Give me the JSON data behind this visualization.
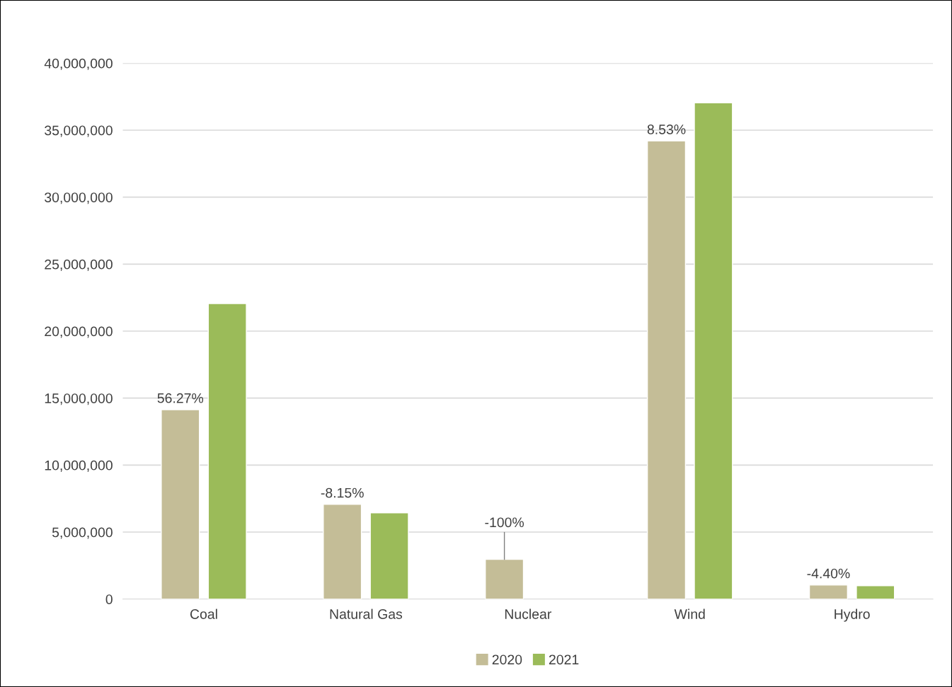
{
  "chart_data": {
    "type": "bar",
    "categories": [
      "Coal",
      "Natural Gas",
      "Nuclear",
      "Wind",
      "Hydro"
    ],
    "series": [
      {
        "name": "2020",
        "color": "#c4bd97",
        "values": [
          14140000,
          7070000,
          2960000,
          34200000,
          1050000
        ]
      },
      {
        "name": "2021",
        "color": "#9bbb59",
        "values": [
          22060000,
          6440000,
          null,
          37040000,
          1000000
        ]
      }
    ],
    "ylim": [
      0,
      40000000
    ],
    "yticks": [
      {
        "value": 0,
        "label": "0"
      },
      {
        "value": 5000000,
        "label": "5,000,000"
      },
      {
        "value": 10000000,
        "label": "10,000,000"
      },
      {
        "value": 15000000,
        "label": "15,000,000"
      },
      {
        "value": 20000000,
        "label": "20,000,000"
      },
      {
        "value": 25000000,
        "label": "25,000,000"
      },
      {
        "value": 30000000,
        "label": "30,000,000"
      },
      {
        "value": 35000000,
        "label": "35,000,000"
      },
      {
        "value": 40000000,
        "label": "40,000,000"
      }
    ],
    "annotations": [
      "56.27%",
      "-8.15%",
      {
        "text": "-100%",
        "y": 2960000
      },
      "8.53%",
      "-4.40%"
    ],
    "grid": "y",
    "legend": "bottom"
  }
}
